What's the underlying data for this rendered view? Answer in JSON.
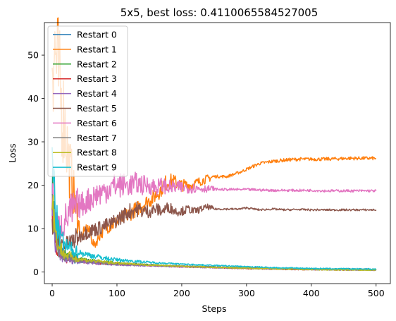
{
  "chart_data": {
    "type": "line",
    "title": "5x5, best loss: 0.4110065584527005",
    "xlabel": "Steps",
    "ylabel": "Loss",
    "xlim": [
      -12,
      522
    ],
    "ylim": [
      -2.7,
      57.5
    ],
    "xticks": [
      0,
      100,
      200,
      300,
      400,
      500
    ],
    "yticks": [
      0,
      10,
      20,
      30,
      40,
      50
    ],
    "grid": false,
    "legend_position": "upper-left",
    "series": [
      {
        "name": "Restart 0",
        "color": "#1f77b4",
        "points": [
          [
            0,
            22
          ],
          [
            5,
            10
          ],
          [
            10,
            6
          ],
          [
            20,
            3.5
          ],
          [
            40,
            2.5
          ],
          [
            60,
            2.2
          ],
          [
            80,
            2
          ],
          [
            100,
            1.8
          ],
          [
            150,
            1.5
          ],
          [
            200,
            1.3
          ],
          [
            250,
            1.1
          ],
          [
            300,
            0.9
          ],
          [
            350,
            0.8
          ],
          [
            400,
            0.7
          ],
          [
            450,
            0.65
          ],
          [
            500,
            0.6
          ]
        ]
      },
      {
        "name": "Restart 1",
        "color": "#ff7f0e",
        "points": [
          [
            0,
            54
          ],
          [
            5,
            50
          ],
          [
            10,
            44
          ],
          [
            15,
            38
          ],
          [
            20,
            34
          ],
          [
            25,
            26
          ],
          [
            30,
            22
          ],
          [
            35,
            16
          ],
          [
            40,
            12
          ],
          [
            45,
            8
          ],
          [
            55,
            10
          ],
          [
            65,
            6
          ],
          [
            75,
            9
          ],
          [
            85,
            10.5
          ],
          [
            95,
            11
          ],
          [
            105,
            12
          ],
          [
            115,
            13
          ],
          [
            125,
            14
          ],
          [
            135,
            15
          ],
          [
            145,
            16
          ],
          [
            155,
            17
          ],
          [
            165,
            18.5
          ],
          [
            175,
            20.5
          ],
          [
            185,
            21
          ],
          [
            200,
            20
          ],
          [
            215,
            20
          ],
          [
            230,
            21
          ],
          [
            250,
            22
          ],
          [
            270,
            22
          ],
          [
            290,
            23
          ],
          [
            305,
            24
          ],
          [
            320,
            25
          ],
          [
            340,
            25.5
          ],
          [
            360,
            25.8
          ],
          [
            380,
            26
          ],
          [
            400,
            26
          ],
          [
            420,
            26
          ],
          [
            440,
            26.1
          ],
          [
            460,
            26.2
          ],
          [
            480,
            26.2
          ],
          [
            500,
            26.2
          ]
        ]
      },
      {
        "name": "Restart 2",
        "color": "#2ca02c",
        "points": [
          [
            0,
            18
          ],
          [
            5,
            8
          ],
          [
            10,
            5
          ],
          [
            20,
            4
          ],
          [
            40,
            3
          ],
          [
            60,
            2.5
          ],
          [
            80,
            2.3
          ],
          [
            100,
            2
          ],
          [
            150,
            1.6
          ],
          [
            200,
            1.3
          ],
          [
            250,
            1.1
          ],
          [
            300,
            0.9
          ],
          [
            350,
            0.7
          ],
          [
            400,
            0.6
          ],
          [
            450,
            0.55
          ],
          [
            500,
            0.5
          ]
        ]
      },
      {
        "name": "Restart 3",
        "color": "#d62728",
        "points": [
          [
            0,
            15
          ],
          [
            5,
            7
          ],
          [
            10,
            4.5
          ],
          [
            20,
            3
          ],
          [
            40,
            2.6
          ],
          [
            60,
            2.2
          ],
          [
            80,
            2
          ],
          [
            100,
            1.8
          ],
          [
            150,
            1.5
          ],
          [
            200,
            1.2
          ],
          [
            250,
            1
          ],
          [
            300,
            0.8
          ],
          [
            350,
            0.65
          ],
          [
            400,
            0.55
          ],
          [
            450,
            0.5
          ],
          [
            500,
            0.45
          ]
        ]
      },
      {
        "name": "Restart 4",
        "color": "#9467bd",
        "points": [
          [
            0,
            14
          ],
          [
            5,
            6
          ],
          [
            10,
            4
          ],
          [
            20,
            3
          ],
          [
            40,
            2.5
          ],
          [
            60,
            2.1
          ],
          [
            80,
            1.9
          ],
          [
            100,
            1.7
          ],
          [
            150,
            1.4
          ],
          [
            200,
            1.2
          ],
          [
            250,
            1
          ],
          [
            300,
            0.85
          ],
          [
            350,
            0.7
          ],
          [
            400,
            0.6
          ],
          [
            450,
            0.5
          ],
          [
            500,
            0.45
          ]
        ]
      },
      {
        "name": "Restart 5",
        "color": "#8c564b",
        "points": [
          [
            0,
            13
          ],
          [
            5,
            9
          ],
          [
            10,
            7
          ],
          [
            20,
            6
          ],
          [
            30,
            7
          ],
          [
            40,
            8
          ],
          [
            50,
            9
          ],
          [
            60,
            9.5
          ],
          [
            70,
            10
          ],
          [
            80,
            10.5
          ],
          [
            90,
            11
          ],
          [
            100,
            12
          ],
          [
            110,
            13
          ],
          [
            120,
            14
          ],
          [
            130,
            14.5
          ],
          [
            140,
            14
          ],
          [
            150,
            14
          ],
          [
            160,
            14.5
          ],
          [
            170,
            14
          ],
          [
            180,
            15
          ],
          [
            190,
            14
          ],
          [
            200,
            14
          ],
          [
            210,
            14.5
          ],
          [
            220,
            14
          ],
          [
            230,
            14.5
          ],
          [
            240,
            15
          ],
          [
            250,
            14.5
          ],
          [
            270,
            14.5
          ],
          [
            290,
            14.5
          ],
          [
            300,
            14.8
          ],
          [
            320,
            14.3
          ],
          [
            340,
            14.5
          ],
          [
            360,
            14.3
          ],
          [
            380,
            14.4
          ],
          [
            400,
            14.3
          ],
          [
            420,
            14.3
          ],
          [
            440,
            14.3
          ],
          [
            460,
            14.3
          ],
          [
            480,
            14.3
          ],
          [
            500,
            14.3
          ]
        ]
      },
      {
        "name": "Restart 6",
        "color": "#e377c2",
        "points": [
          [
            0,
            16
          ],
          [
            5,
            12
          ],
          [
            10,
            10
          ],
          [
            20,
            12
          ],
          [
            30,
            14
          ],
          [
            40,
            15
          ],
          [
            50,
            16
          ],
          [
            60,
            17
          ],
          [
            70,
            18
          ],
          [
            80,
            18.5
          ],
          [
            90,
            19.5
          ],
          [
            100,
            20
          ],
          [
            110,
            20
          ],
          [
            120,
            20
          ],
          [
            130,
            20.5
          ],
          [
            140,
            20
          ],
          [
            150,
            20
          ],
          [
            160,
            19.5
          ],
          [
            170,
            20
          ],
          [
            180,
            19.5
          ],
          [
            200,
            19.5
          ],
          [
            220,
            19.3
          ],
          [
            240,
            19.2
          ],
          [
            260,
            19
          ],
          [
            280,
            19
          ],
          [
            300,
            19
          ],
          [
            320,
            18.9
          ],
          [
            340,
            18.8
          ],
          [
            360,
            18.8
          ],
          [
            380,
            18.8
          ],
          [
            400,
            18.8
          ],
          [
            420,
            18.7
          ],
          [
            440,
            18.7
          ],
          [
            460,
            18.7
          ],
          [
            480,
            18.7
          ],
          [
            500,
            18.7
          ]
        ]
      },
      {
        "name": "Restart 7",
        "color": "#7f7f7f",
        "points": [
          [
            0,
            17
          ],
          [
            5,
            8
          ],
          [
            10,
            5
          ],
          [
            20,
            3.5
          ],
          [
            40,
            2.8
          ],
          [
            60,
            2.4
          ],
          [
            80,
            2.1
          ],
          [
            100,
            1.9
          ],
          [
            150,
            1.6
          ],
          [
            200,
            1.3
          ],
          [
            250,
            1.1
          ],
          [
            300,
            0.9
          ],
          [
            350,
            0.75
          ],
          [
            400,
            0.65
          ],
          [
            450,
            0.55
          ],
          [
            500,
            0.5
          ]
        ]
      },
      {
        "name": "Restart 8",
        "color": "#bcbd22",
        "points": [
          [
            0,
            19
          ],
          [
            5,
            9
          ],
          [
            10,
            6
          ],
          [
            20,
            4
          ],
          [
            40,
            3
          ],
          [
            60,
            2.6
          ],
          [
            80,
            2.3
          ],
          [
            100,
            2
          ],
          [
            150,
            1.6
          ],
          [
            200,
            1.3
          ],
          [
            250,
            1.05
          ],
          [
            300,
            0.85
          ],
          [
            350,
            0.7
          ],
          [
            400,
            0.55
          ],
          [
            450,
            0.45
          ],
          [
            500,
            0.41
          ]
        ]
      },
      {
        "name": "Restart 9",
        "color": "#17becf",
        "points": [
          [
            0,
            28
          ],
          [
            5,
            14
          ],
          [
            10,
            9
          ],
          [
            20,
            6
          ],
          [
            40,
            4.5
          ],
          [
            60,
            3.8
          ],
          [
            80,
            3.2
          ],
          [
            100,
            2.8
          ],
          [
            150,
            2.2
          ],
          [
            200,
            1.8
          ],
          [
            250,
            1.5
          ],
          [
            300,
            1.2
          ],
          [
            350,
            0.95
          ],
          [
            400,
            0.8
          ],
          [
            450,
            0.7
          ],
          [
            500,
            0.65
          ]
        ]
      }
    ]
  }
}
